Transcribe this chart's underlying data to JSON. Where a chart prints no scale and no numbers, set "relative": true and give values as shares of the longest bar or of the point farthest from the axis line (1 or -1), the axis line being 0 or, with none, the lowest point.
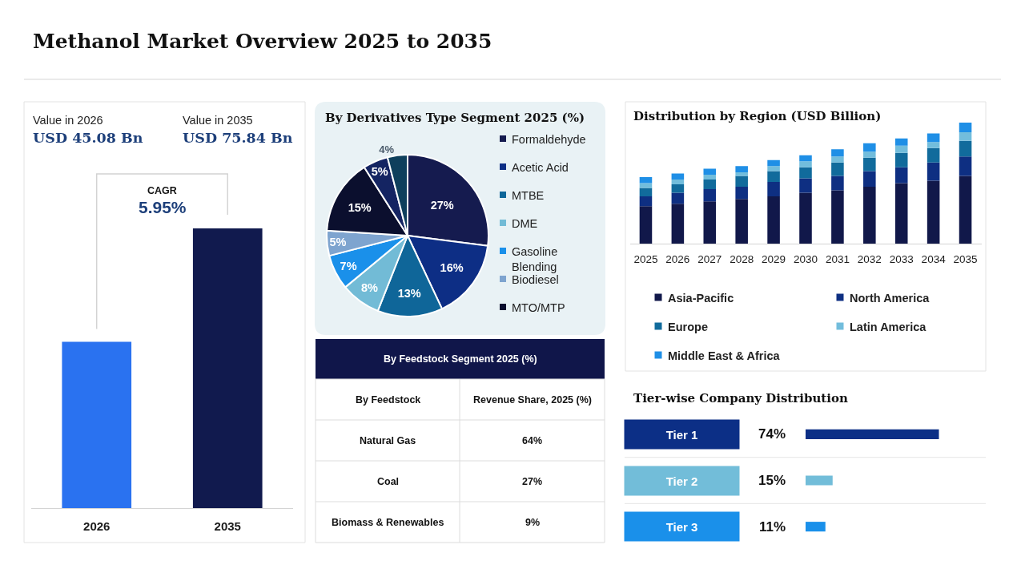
{
  "chart_data": [
    {
      "type": "other",
      "title": "Methanol Market Overview 2025 to 2035"
    },
    {
      "type": "bar",
      "categories": [
        "2026",
        "2035"
      ],
      "values": [
        45.08,
        75.84
      ],
      "colors": [
        "#2a72f0",
        "#111a4e"
      ],
      "value_labels": [
        "USD 45.08 Bn",
        "USD 75.84 Bn"
      ],
      "annotations": [
        "Value in 2026",
        "Value in 2035",
        "CAGR",
        "5.95%"
      ],
      "tick_labels": "x"
    },
    {
      "type": "pie",
      "title": "By Derivatives Type Segment 2025 (%)",
      "categories": [
        "Formaldehyde",
        "Acetic Acid",
        "MTBE",
        "DME",
        "Gasoline Blending",
        "Biodiesel",
        "MTO/MTP",
        null,
        null
      ],
      "values": [
        27,
        16,
        13,
        8,
        7,
        5,
        15,
        5,
        4
      ],
      "colors": [
        "#151b4f",
        "#0d2e85",
        "#0f6699",
        "#72bbd6",
        "#1a90ea",
        "#7ea4cf",
        "#0b0f2e",
        "#142462",
        "#0e3f5c"
      ],
      "value_labels": [
        "27%",
        "16%",
        "13%",
        "8%",
        "7%",
        "5%",
        "15%",
        "5%",
        "4%"
      ],
      "legend": "right"
    },
    {
      "type": "bar",
      "title": "Distribution by Region (USD Billion)",
      "stacked": true,
      "relative": true,
      "legend": "bottom",
      "categories": [
        "2025",
        "2026",
        "2027",
        "2028",
        "2029",
        "2030",
        "2031",
        "2032",
        "2033",
        "2034",
        "2035"
      ],
      "series": [
        {
          "name": "Asia-Pacific",
          "color": "#11184a",
          "values": [
            0.31,
            0.33,
            0.35,
            0.37,
            0.39,
            0.42,
            0.44,
            0.47,
            0.5,
            0.52,
            0.56
          ]
        },
        {
          "name": "North America",
          "color": "#0e2f82",
          "values": [
            0.08,
            0.09,
            0.1,
            0.1,
            0.12,
            0.12,
            0.12,
            0.13,
            0.13,
            0.15,
            0.16
          ]
        },
        {
          "name": "Europe",
          "color": "#116b9c",
          "values": [
            0.07,
            0.07,
            0.08,
            0.09,
            0.09,
            0.09,
            0.11,
            0.11,
            0.12,
            0.12,
            0.13
          ]
        },
        {
          "name": "Latin America",
          "color": "#72bddc",
          "values": [
            0.04,
            0.04,
            0.04,
            0.03,
            0.04,
            0.05,
            0.05,
            0.05,
            0.06,
            0.05,
            0.07
          ]
        },
        {
          "name": "Middle East & Africa",
          "color": "#1f8fe6",
          "values": [
            0.05,
            0.05,
            0.05,
            0.05,
            0.05,
            0.05,
            0.06,
            0.07,
            0.06,
            0.07,
            0.08
          ]
        }
      ]
    },
    {
      "type": "other",
      "title": "By Feedstock Segment 2025 (%)",
      "categories": [
        "Natural Gas",
        "Coal",
        "Biomass & Renewables"
      ],
      "values": [
        64,
        27,
        9
      ],
      "value_labels": [
        "64%",
        "27%",
        "9%"
      ],
      "annotations": [
        "By Feedstock",
        "Revenue Share, 2025 (%)"
      ]
    },
    {
      "type": "bar",
      "orientation": "horizontal",
      "title": "Tier-wise Company Distribution",
      "categories": [
        "Tier 1",
        "Tier 2",
        "Tier 3"
      ],
      "values": [
        74,
        15,
        11
      ],
      "colors": [
        "#0c2f86",
        "#72bdd9",
        "#1a90ea"
      ],
      "value_labels": [
        "74%",
        "15%",
        "11%"
      ],
      "tick_labels": "y"
    }
  ]
}
